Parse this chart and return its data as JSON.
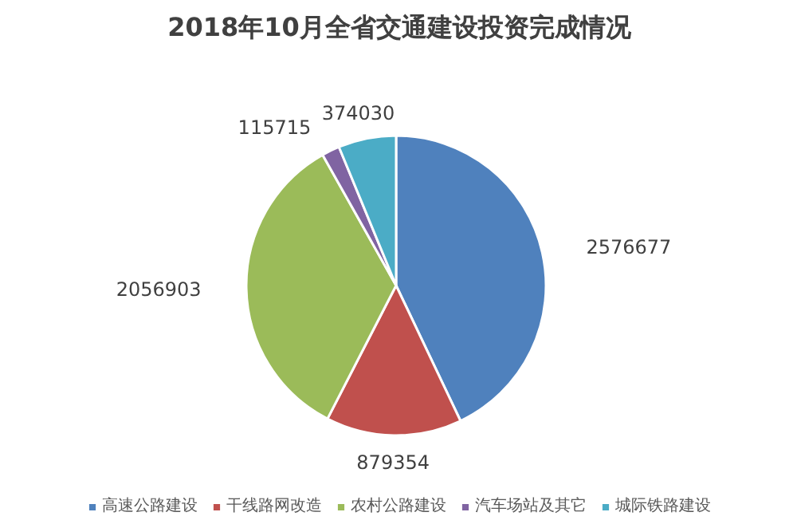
{
  "chart_data": {
    "type": "pie",
    "title": "2018年10月全省交通建设投资完成情况",
    "categories": [
      "高速公路建设",
      "干线路网改造",
      "农村公路建设",
      "汽车场站及其它",
      "城际铁路建设"
    ],
    "values": [
      2576677,
      879354,
      2056903,
      115715,
      374030
    ],
    "colors": [
      "#4f81bd",
      "#c0504d",
      "#9bbb59",
      "#8064a2",
      "#4bacc6"
    ],
    "data_labels": true,
    "legend": "bottom"
  }
}
